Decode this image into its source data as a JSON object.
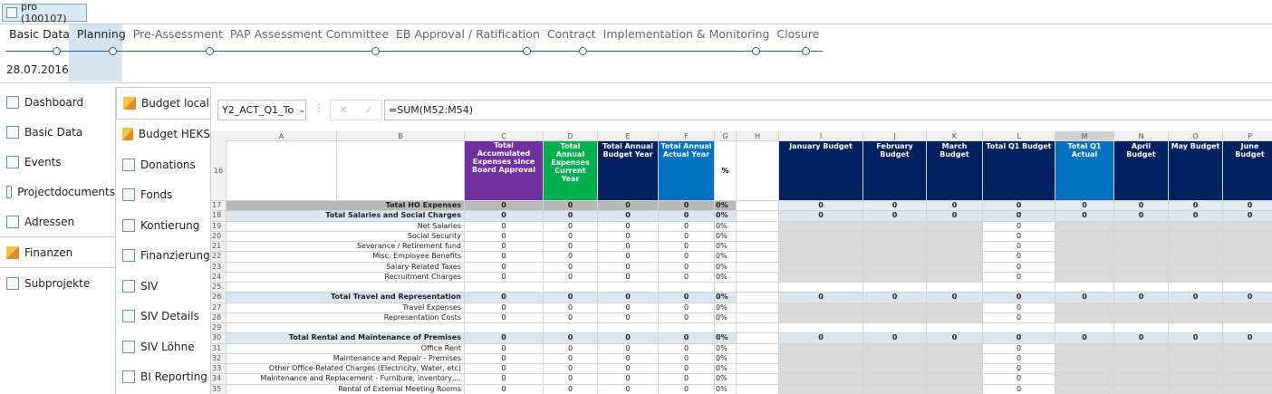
{
  "tab": "pro (100107)",
  "phases": [
    "Basic Data",
    "Planning",
    "Pre-Assessment",
    "PAP Assessment Committee",
    "EB Approval / Ratification",
    "Contract",
    "Implementation & Monitoring",
    "Closure"
  ],
  "date": "28.07.2016",
  "nav": [
    "Dashboard",
    "Basic Data",
    "Events",
    "Projectdocuments",
    "Adressen",
    "Finanzen",
    "Subprojekte"
  ],
  "subnav": [
    "Budget local",
    "Budget HEKS",
    "Donations",
    "Fonds",
    "Kontierung",
    "Finanzierung",
    "SIV",
    "SIV Details",
    "SIV Löhne",
    "BI Reporting"
  ],
  "formula_bar": {
    "name_box": "Y2_ACT_Q1_To",
    "formula": "=SUM(M52:M54)"
  },
  "sheet": {
    "columns": [
      "A",
      "B",
      "C",
      "D",
      "E",
      "F",
      "G",
      "H",
      "I",
      "J",
      "K",
      "L",
      "M",
      "N",
      "O",
      "P"
    ],
    "header_row": 16,
    "headers": [
      "Total Accumulated Expenses since Board Approval",
      "Total Annual Expenses Current Year",
      "Total Annual Budget Year",
      "Total Annual Actual Year",
      "%",
      null,
      "January Budget",
      "February Budget",
      "March Budget",
      "Total Q1 Budget",
      "Total Q1 Actual",
      "April Budget",
      "May Budget",
      "June Budget"
    ],
    "rows": [
      {
        "n": 17,
        "label": "Total HO Expenses",
        "cells": [
          0,
          0,
          0,
          0,
          "0%",
          null,
          0,
          0,
          0,
          0,
          0,
          0,
          0,
          0
        ]
      },
      {
        "n": 18,
        "label": "Total Salaries and Social Charges",
        "cells": [
          0,
          0,
          0,
          0,
          "0%",
          null,
          0,
          0,
          0,
          0,
          0,
          0,
          0,
          0
        ]
      },
      {
        "n": 19,
        "label": "Net Salaries",
        "cells": [
          0,
          0,
          0,
          0,
          "0%",
          null,
          null,
          null,
          null,
          0,
          null,
          null,
          null,
          null
        ]
      },
      {
        "n": 20,
        "label": "Social Security",
        "cells": [
          0,
          0,
          0,
          0,
          "0%",
          null,
          null,
          null,
          null,
          0,
          null,
          null,
          null,
          null
        ]
      },
      {
        "n": 21,
        "label": "Severance / Retirement fund",
        "cells": [
          0,
          0,
          0,
          0,
          "0%",
          null,
          null,
          null,
          null,
          0,
          null,
          null,
          null,
          null
        ]
      },
      {
        "n": 22,
        "label": "Misc. Employee Benefits",
        "cells": [
          0,
          0,
          0,
          0,
          "0%",
          null,
          null,
          null,
          null,
          0,
          null,
          null,
          null,
          null
        ]
      },
      {
        "n": 23,
        "label": "Salary-Related Taxes",
        "cells": [
          0,
          0,
          0,
          0,
          "0%",
          null,
          null,
          null,
          null,
          0,
          null,
          null,
          null,
          null
        ]
      },
      {
        "n": 24,
        "label": "Recruitment Charges",
        "cells": [
          0,
          0,
          0,
          0,
          "0%",
          null,
          null,
          null,
          null,
          0,
          null,
          null,
          null,
          null
        ]
      },
      {
        "n": 25,
        "label": null,
        "cells": null
      },
      {
        "n": 26,
        "label": "Total Travel and Representation",
        "cells": [
          0,
          0,
          0,
          0,
          "0%",
          null,
          0,
          0,
          0,
          0,
          0,
          0,
          0,
          0
        ]
      },
      {
        "n": 27,
        "label": "Travel Expenses",
        "cells": [
          0,
          0,
          0,
          0,
          "0%",
          null,
          null,
          null,
          null,
          0,
          null,
          null,
          null,
          null
        ]
      },
      {
        "n": 28,
        "label": "Representation Costs",
        "cells": [
          0,
          0,
          0,
          0,
          "0%",
          null,
          null,
          null,
          null,
          0,
          null,
          null,
          null,
          null
        ]
      },
      {
        "n": 29,
        "label": null,
        "cells": null
      },
      {
        "n": 30,
        "label": "Total Rental and Maintenance of Premises",
        "cells": [
          0,
          0,
          0,
          0,
          "0%",
          null,
          0,
          0,
          0,
          0,
          0,
          0,
          0,
          0
        ]
      },
      {
        "n": 31,
        "label": "Office Rent",
        "cells": [
          0,
          0,
          0,
          0,
          "0%",
          null,
          null,
          null,
          null,
          0,
          null,
          null,
          null,
          null
        ]
      },
      {
        "n": 32,
        "label": "Maintenance and Repair - Premises",
        "cells": [
          0,
          0,
          0,
          0,
          "0%",
          null,
          null,
          null,
          null,
          0,
          null,
          null,
          null,
          null
        ]
      },
      {
        "n": 33,
        "label": "Other Office-Related Charges (Electricity, Water, etc)",
        "cells": [
          0,
          0,
          0,
          0,
          "0%",
          null,
          null,
          null,
          null,
          0,
          null,
          null,
          null,
          null
        ]
      },
      {
        "n": 34,
        "label": "Maintenance and Replacement - Furniture, inventory,...",
        "cells": [
          0,
          0,
          0,
          0,
          "0%",
          null,
          null,
          null,
          null,
          0,
          null,
          null,
          null,
          null
        ]
      },
      {
        "n": 35,
        "label": "Rental of External Meeting Rooms",
        "cells": [
          0,
          0,
          0,
          0,
          "0%",
          null,
          null,
          null,
          null,
          0,
          null,
          null,
          null,
          null
        ]
      }
    ]
  }
}
